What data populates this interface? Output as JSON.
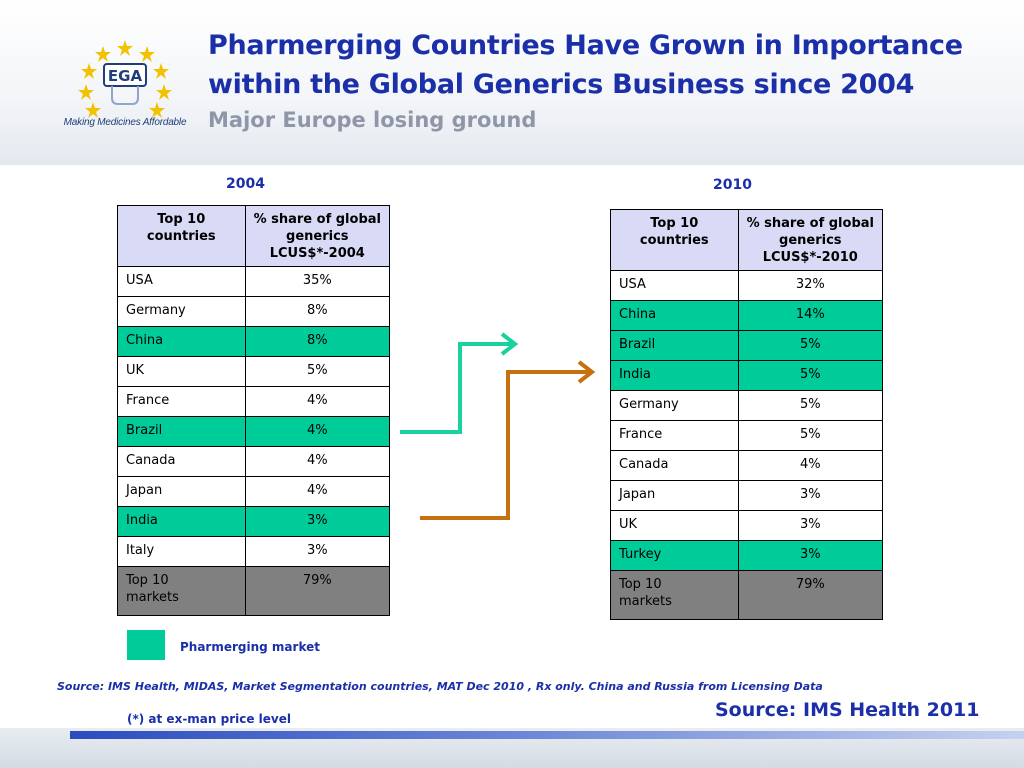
{
  "header": {
    "title": "Pharmerging Countries Have Grown in Importance within the Global Generics Business since 2004",
    "subtitle": "Major Europe losing ground",
    "logo_text": "EGA",
    "logo_tagline": "Making Medicines Affordable"
  },
  "table_2004": {
    "year": "2004",
    "col1_header": "Top 10 countries",
    "col2_header": "% share of global generics LCUS$*-2004",
    "rows": [
      {
        "country": "USA",
        "share": "35%",
        "pharmerging": false
      },
      {
        "country": "Germany",
        "share": "8%",
        "pharmerging": false
      },
      {
        "country": "China",
        "share": "8%",
        "pharmerging": true
      },
      {
        "country": "UK",
        "share": "5%",
        "pharmerging": false
      },
      {
        "country": "France",
        "share": "4%",
        "pharmerging": false
      },
      {
        "country": "Brazil",
        "share": "4%",
        "pharmerging": true
      },
      {
        "country": "Canada",
        "share": "4%",
        "pharmerging": false
      },
      {
        "country": "Japan",
        "share": "4%",
        "pharmerging": false
      },
      {
        "country": "India",
        "share": "3%",
        "pharmerging": true
      },
      {
        "country": "Italy",
        "share": "3%",
        "pharmerging": false
      }
    ],
    "total_label": "Top 10 markets",
    "total_share": "79%"
  },
  "table_2010": {
    "year": "2010",
    "col1_header": "Top 10 countries",
    "col2_header": "% share of global generics LCUS$*-2010",
    "rows": [
      {
        "country": "USA",
        "share": "32%",
        "pharmerging": false
      },
      {
        "country": "China",
        "share": "14%",
        "pharmerging": true
      },
      {
        "country": "Brazil",
        "share": "5%",
        "pharmerging": true
      },
      {
        "country": "India",
        "share": "5%",
        "pharmerging": true
      },
      {
        "country": "Germany",
        "share": "5%",
        "pharmerging": false
      },
      {
        "country": "France",
        "share": "5%",
        "pharmerging": false
      },
      {
        "country": "Canada",
        "share": "4%",
        "pharmerging": false
      },
      {
        "country": "Japan",
        "share": "3%",
        "pharmerging": false
      },
      {
        "country": "UK",
        "share": "3%",
        "pharmerging": false
      },
      {
        "country": "Turkey",
        "share": "3%",
        "pharmerging": true
      }
    ],
    "total_label": "Top 10 markets",
    "total_share": "79%"
  },
  "legend": {
    "label": "Pharmerging market",
    "color": "#00cc99"
  },
  "colors": {
    "title": "#1a2fa8",
    "pharmerging": "#00cc99",
    "header_cell": "#d9daf5",
    "total_cell": "#808080",
    "arrow_up": "#1ad1a0",
    "arrow_down": "#c7700f"
  },
  "notes": {
    "source_detail": "Source: IMS Health, MIDAS, Market Segmentation countries, MAT Dec 2010 , Rx only. China and Russia from Licensing Data",
    "exman": "(*) at ex-man price level",
    "source_big": "Source: IMS Health 2011"
  }
}
